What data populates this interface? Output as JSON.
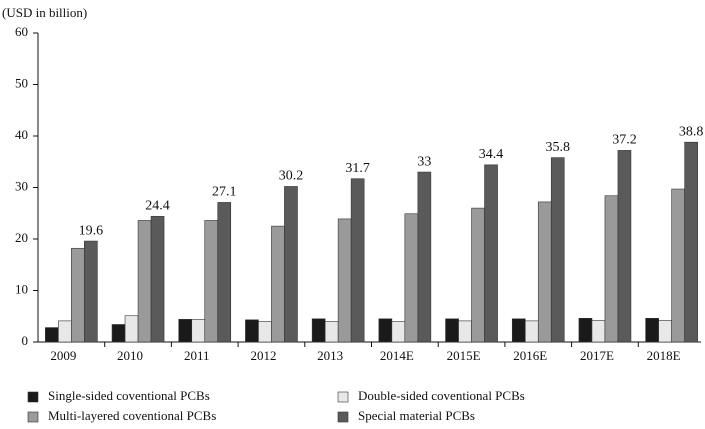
{
  "chart_data": {
    "type": "bar",
    "y_label": "(USD in billion)",
    "categories": [
      "2009",
      "2010",
      "2011",
      "2012",
      "2013",
      "2014E",
      "2015E",
      "2016E",
      "2017E",
      "2018E"
    ],
    "series": [
      {
        "name": "Single-sided coventional PCBs",
        "color": "#1a1a1a",
        "values": [
          2.8,
          3.4,
          4.4,
          4.3,
          4.5,
          4.5,
          4.5,
          4.5,
          4.6,
          4.6
        ]
      },
      {
        "name": "Double-sided coventional PCBs",
        "color": "#e8e8e8",
        "values": [
          4.1,
          5.1,
          4.4,
          4.0,
          4.0,
          4.0,
          4.1,
          4.1,
          4.2,
          4.2
        ]
      },
      {
        "name": "Multi-layered coventional PCBs",
        "color": "#9a9a9a",
        "values": [
          18.2,
          23.6,
          23.6,
          22.5,
          23.9,
          24.9,
          26.0,
          27.2,
          28.4,
          29.7
        ]
      },
      {
        "name": "Special material PCBs",
        "color": "#5a5a5a",
        "values": [
          19.6,
          24.4,
          27.1,
          30.2,
          31.7,
          33,
          34.4,
          35.8,
          37.2,
          38.8
        ],
        "show_labels": true
      }
    ],
    "ylim": [
      0,
      60
    ],
    "yticks": [
      0,
      10,
      20,
      30,
      40,
      50,
      60
    ],
    "grid": false,
    "legend": "bottom"
  }
}
